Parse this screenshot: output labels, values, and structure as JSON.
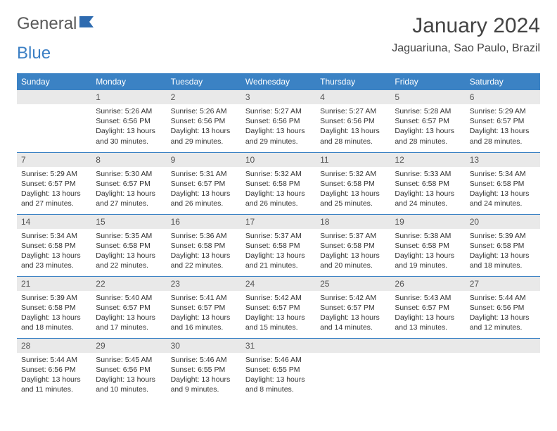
{
  "brand": {
    "name_a": "General",
    "name_b": "Blue"
  },
  "title": "January 2024",
  "location": "Jaguariuna, Sao Paulo, Brazil",
  "colors": {
    "header_bg": "#3b82c4",
    "header_text": "#ffffff",
    "daynum_bg": "#e9e9e9",
    "row_border": "#3b82c4",
    "body_text": "#333333"
  },
  "weekdays": [
    "Sunday",
    "Monday",
    "Tuesday",
    "Wednesday",
    "Thursday",
    "Friday",
    "Saturday"
  ],
  "weeks": [
    [
      {
        "blank": true
      },
      {
        "n": "1",
        "sr": "5:26 AM",
        "ss": "6:56 PM",
        "d1": "Daylight: 13 hours",
        "d2": "and 30 minutes."
      },
      {
        "n": "2",
        "sr": "5:26 AM",
        "ss": "6:56 PM",
        "d1": "Daylight: 13 hours",
        "d2": "and 29 minutes."
      },
      {
        "n": "3",
        "sr": "5:27 AM",
        "ss": "6:56 PM",
        "d1": "Daylight: 13 hours",
        "d2": "and 29 minutes."
      },
      {
        "n": "4",
        "sr": "5:27 AM",
        "ss": "6:56 PM",
        "d1": "Daylight: 13 hours",
        "d2": "and 28 minutes."
      },
      {
        "n": "5",
        "sr": "5:28 AM",
        "ss": "6:57 PM",
        "d1": "Daylight: 13 hours",
        "d2": "and 28 minutes."
      },
      {
        "n": "6",
        "sr": "5:29 AM",
        "ss": "6:57 PM",
        "d1": "Daylight: 13 hours",
        "d2": "and 28 minutes."
      }
    ],
    [
      {
        "n": "7",
        "sr": "5:29 AM",
        "ss": "6:57 PM",
        "d1": "Daylight: 13 hours",
        "d2": "and 27 minutes."
      },
      {
        "n": "8",
        "sr": "5:30 AM",
        "ss": "6:57 PM",
        "d1": "Daylight: 13 hours",
        "d2": "and 27 minutes."
      },
      {
        "n": "9",
        "sr": "5:31 AM",
        "ss": "6:57 PM",
        "d1": "Daylight: 13 hours",
        "d2": "and 26 minutes."
      },
      {
        "n": "10",
        "sr": "5:32 AM",
        "ss": "6:58 PM",
        "d1": "Daylight: 13 hours",
        "d2": "and 26 minutes."
      },
      {
        "n": "11",
        "sr": "5:32 AM",
        "ss": "6:58 PM",
        "d1": "Daylight: 13 hours",
        "d2": "and 25 minutes."
      },
      {
        "n": "12",
        "sr": "5:33 AM",
        "ss": "6:58 PM",
        "d1": "Daylight: 13 hours",
        "d2": "and 24 minutes."
      },
      {
        "n": "13",
        "sr": "5:34 AM",
        "ss": "6:58 PM",
        "d1": "Daylight: 13 hours",
        "d2": "and 24 minutes."
      }
    ],
    [
      {
        "n": "14",
        "sr": "5:34 AM",
        "ss": "6:58 PM",
        "d1": "Daylight: 13 hours",
        "d2": "and 23 minutes."
      },
      {
        "n": "15",
        "sr": "5:35 AM",
        "ss": "6:58 PM",
        "d1": "Daylight: 13 hours",
        "d2": "and 22 minutes."
      },
      {
        "n": "16",
        "sr": "5:36 AM",
        "ss": "6:58 PM",
        "d1": "Daylight: 13 hours",
        "d2": "and 22 minutes."
      },
      {
        "n": "17",
        "sr": "5:37 AM",
        "ss": "6:58 PM",
        "d1": "Daylight: 13 hours",
        "d2": "and 21 minutes."
      },
      {
        "n": "18",
        "sr": "5:37 AM",
        "ss": "6:58 PM",
        "d1": "Daylight: 13 hours",
        "d2": "and 20 minutes."
      },
      {
        "n": "19",
        "sr": "5:38 AM",
        "ss": "6:58 PM",
        "d1": "Daylight: 13 hours",
        "d2": "and 19 minutes."
      },
      {
        "n": "20",
        "sr": "5:39 AM",
        "ss": "6:58 PM",
        "d1": "Daylight: 13 hours",
        "d2": "and 18 minutes."
      }
    ],
    [
      {
        "n": "21",
        "sr": "5:39 AM",
        "ss": "6:58 PM",
        "d1": "Daylight: 13 hours",
        "d2": "and 18 minutes."
      },
      {
        "n": "22",
        "sr": "5:40 AM",
        "ss": "6:57 PM",
        "d1": "Daylight: 13 hours",
        "d2": "and 17 minutes."
      },
      {
        "n": "23",
        "sr": "5:41 AM",
        "ss": "6:57 PM",
        "d1": "Daylight: 13 hours",
        "d2": "and 16 minutes."
      },
      {
        "n": "24",
        "sr": "5:42 AM",
        "ss": "6:57 PM",
        "d1": "Daylight: 13 hours",
        "d2": "and 15 minutes."
      },
      {
        "n": "25",
        "sr": "5:42 AM",
        "ss": "6:57 PM",
        "d1": "Daylight: 13 hours",
        "d2": "and 14 minutes."
      },
      {
        "n": "26",
        "sr": "5:43 AM",
        "ss": "6:57 PM",
        "d1": "Daylight: 13 hours",
        "d2": "and 13 minutes."
      },
      {
        "n": "27",
        "sr": "5:44 AM",
        "ss": "6:56 PM",
        "d1": "Daylight: 13 hours",
        "d2": "and 12 minutes."
      }
    ],
    [
      {
        "n": "28",
        "sr": "5:44 AM",
        "ss": "6:56 PM",
        "d1": "Daylight: 13 hours",
        "d2": "and 11 minutes."
      },
      {
        "n": "29",
        "sr": "5:45 AM",
        "ss": "6:56 PM",
        "d1": "Daylight: 13 hours",
        "d2": "and 10 minutes."
      },
      {
        "n": "30",
        "sr": "5:46 AM",
        "ss": "6:55 PM",
        "d1": "Daylight: 13 hours",
        "d2": "and 9 minutes."
      },
      {
        "n": "31",
        "sr": "5:46 AM",
        "ss": "6:55 PM",
        "d1": "Daylight: 13 hours",
        "d2": "and 8 minutes."
      },
      {
        "blank": true
      },
      {
        "blank": true
      },
      {
        "blank": true
      }
    ]
  ],
  "labels": {
    "sunrise": "Sunrise: ",
    "sunset": "Sunset: "
  }
}
